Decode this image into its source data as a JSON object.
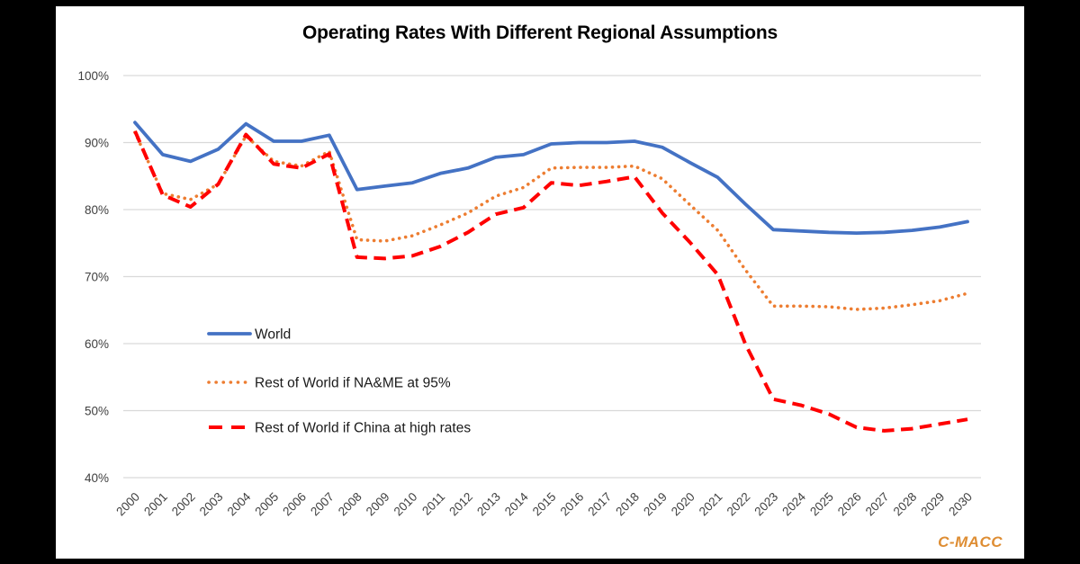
{
  "window": {
    "background_color": "#000000",
    "card_background_color": "#ffffff"
  },
  "watermark": {
    "text": "C-MACC",
    "color": "#DE8D33"
  },
  "chart_data": {
    "type": "line",
    "title": "Operating Rates With Different Regional Assumptions",
    "xlabel": "",
    "ylabel": "",
    "x": [
      2000,
      2001,
      2002,
      2003,
      2004,
      2005,
      2006,
      2007,
      2008,
      2009,
      2010,
      2011,
      2012,
      2013,
      2014,
      2015,
      2016,
      2017,
      2018,
      2019,
      2020,
      2021,
      2022,
      2023,
      2024,
      2025,
      2026,
      2027,
      2028,
      2029,
      2030
    ],
    "x_tick_labels": [
      "2000",
      "2001",
      "2002",
      "2003",
      "2004",
      "2005",
      "2006",
      "2007",
      "2008",
      "2009",
      "2010",
      "2011",
      "2012",
      "2013",
      "2014",
      "2015",
      "2016",
      "2017",
      "2018",
      "2019",
      "2020",
      "2021",
      "2022",
      "2023",
      "2024",
      "2025",
      "2026",
      "2027",
      "2028",
      "2029",
      "2030"
    ],
    "ylim": [
      40,
      100
    ],
    "y_tick_step": 10,
    "y_tick_labels": [
      "40%",
      "50%",
      "60%",
      "70%",
      "80%",
      "90%",
      "100%"
    ],
    "grid": true,
    "gridline_color": "#d9d9d9",
    "axis_text_color": "#404040",
    "legend_position": "inside-left",
    "legend_text_color": "#1a1a1a",
    "series": [
      {
        "name": "World",
        "color": "#4472C4",
        "line_style": "solid",
        "values": [
          93.0,
          88.2,
          87.2,
          89.0,
          92.8,
          90.2,
          90.2,
          91.1,
          83.0,
          83.5,
          84.0,
          85.4,
          86.2,
          87.8,
          88.2,
          89.8,
          90.0,
          90.0,
          90.2,
          89.3,
          87.0,
          84.8,
          80.8,
          77.0,
          76.8,
          76.6,
          76.5,
          76.6,
          76.9,
          77.4,
          78.2
        ]
      },
      {
        "name": "Rest of World if NA&ME at 95%",
        "color": "#ED7D31",
        "line_style": "dotted",
        "values": [
          91.5,
          82.4,
          81.5,
          83.8,
          91.0,
          87.2,
          86.5,
          88.7,
          75.5,
          75.3,
          76.1,
          77.7,
          79.5,
          82.0,
          83.3,
          86.2,
          86.3,
          86.3,
          86.5,
          84.6,
          80.7,
          76.9,
          71.0,
          65.6,
          65.6,
          65.5,
          65.1,
          65.3,
          65.8,
          66.4,
          67.5
        ]
      },
      {
        "name": "Rest of World if China at high rates",
        "color": "#FF0000",
        "line_style": "dashed",
        "values": [
          91.7,
          82.2,
          80.4,
          83.8,
          91.2,
          86.8,
          86.2,
          88.3,
          72.9,
          72.7,
          73.1,
          74.5,
          76.6,
          79.3,
          80.3,
          84.0,
          83.6,
          84.2,
          84.9,
          79.5,
          75.1,
          70.3,
          59.9,
          51.7,
          50.8,
          49.5,
          47.5,
          47.0,
          47.3,
          48.0,
          48.7
        ]
      }
    ]
  }
}
